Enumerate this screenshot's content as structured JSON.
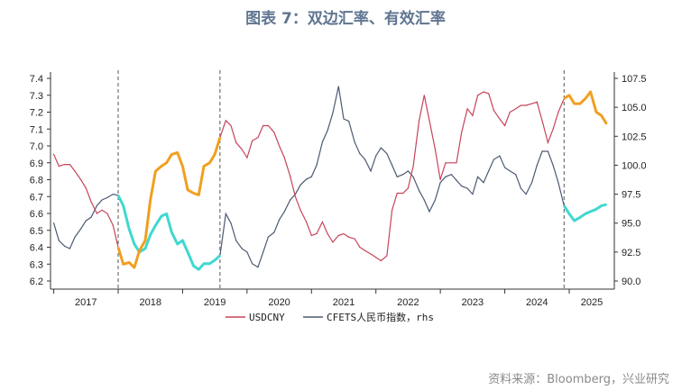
{
  "title": "图表 7：双边汇率、有效汇率",
  "source": "资料来源：Bloomberg，兴业研究",
  "chart_data": {
    "type": "line",
    "title": "图表 7：双边汇率、有效汇率",
    "x_range": [
      2016.95,
      2025.7
    ],
    "year_labels": [
      "2017",
      "2018",
      "2019",
      "2020",
      "2021",
      "2022",
      "2023",
      "2024",
      "2025"
    ],
    "dashed_markers": [
      2018.0,
      2019.58,
      2024.92
    ],
    "left_axis": {
      "min": 6.2,
      "max": 7.4,
      "ticks": [
        "6.2",
        "6.3",
        "6.4",
        "6.5",
        "6.6",
        "6.7",
        "6.8",
        "6.9",
        "7.0",
        "7.1",
        "7.2",
        "7.3",
        "7.4"
      ]
    },
    "right_axis": {
      "min": 90.0,
      "max": 107.5,
      "ticks": [
        "90.0",
        "92.5",
        "95.0",
        "97.5",
        "100.0",
        "102.5",
        "105.0",
        "107.5"
      ]
    },
    "colors": {
      "usdcny": "#c8445a",
      "cfets": "#4c5a72",
      "highlight_usdcny": "#f0a020",
      "highlight_cfets": "#40d8d0"
    },
    "legend": [
      {
        "label": "USDCNY",
        "color": "#c8445a"
      },
      {
        "label": "CFETS人民币指数，rhs",
        "color": "#4c5a72"
      }
    ],
    "series": [
      {
        "name": "USDCNY",
        "axis": "left",
        "x": [
          2017.0,
          2017.08,
          2017.17,
          2017.25,
          2017.33,
          2017.42,
          2017.5,
          2017.58,
          2017.67,
          2017.75,
          2017.83,
          2017.92,
          2018.0,
          2018.08,
          2018.17,
          2018.25,
          2018.33,
          2018.42,
          2018.5,
          2018.58,
          2018.67,
          2018.75,
          2018.83,
          2018.92,
          2019.0,
          2019.08,
          2019.17,
          2019.25,
          2019.33,
          2019.42,
          2019.5,
          2019.58,
          2019.67,
          2019.75,
          2019.83,
          2019.92,
          2020.0,
          2020.08,
          2020.17,
          2020.25,
          2020.33,
          2020.42,
          2020.5,
          2020.58,
          2020.67,
          2020.75,
          2020.83,
          2020.92,
          2021.0,
          2021.08,
          2021.17,
          2021.25,
          2021.33,
          2021.42,
          2021.5,
          2021.58,
          2021.67,
          2021.75,
          2021.83,
          2021.92,
          2022.0,
          2022.08,
          2022.17,
          2022.25,
          2022.33,
          2022.42,
          2022.5,
          2022.58,
          2022.67,
          2022.75,
          2022.83,
          2022.92,
          2023.0,
          2023.08,
          2023.17,
          2023.25,
          2023.33,
          2023.42,
          2023.5,
          2023.58,
          2023.67,
          2023.75,
          2023.83,
          2023.92,
          2024.0,
          2024.08,
          2024.17,
          2024.25,
          2024.33,
          2024.42,
          2024.5,
          2024.58,
          2024.67,
          2024.75,
          2024.83,
          2024.92,
          2025.0,
          2025.08,
          2025.17,
          2025.25,
          2025.33,
          2025.42,
          2025.5,
          2025.58
        ],
        "values": [
          6.95,
          6.88,
          6.89,
          6.89,
          6.85,
          6.8,
          6.75,
          6.67,
          6.6,
          6.62,
          6.6,
          6.53,
          6.4,
          6.3,
          6.31,
          6.28,
          6.38,
          6.44,
          6.68,
          6.85,
          6.88,
          6.9,
          6.95,
          6.96,
          6.88,
          6.74,
          6.72,
          6.71,
          6.88,
          6.9,
          6.95,
          7.05,
          7.15,
          7.12,
          7.02,
          6.98,
          6.93,
          7.03,
          7.05,
          7.12,
          7.12,
          7.08,
          7.0,
          6.93,
          6.82,
          6.7,
          6.62,
          6.55,
          6.47,
          6.48,
          6.55,
          6.48,
          6.43,
          6.47,
          6.48,
          6.46,
          6.45,
          6.4,
          6.38,
          6.36,
          6.34,
          6.32,
          6.35,
          6.62,
          6.72,
          6.72,
          6.75,
          6.88,
          7.15,
          7.3,
          7.15,
          6.98,
          6.8,
          6.9,
          6.9,
          6.9,
          7.08,
          7.22,
          7.18,
          7.3,
          7.32,
          7.31,
          7.21,
          7.16,
          7.12,
          7.2,
          7.22,
          7.24,
          7.24,
          7.25,
          7.26,
          7.15,
          7.02,
          7.1,
          7.2,
          7.28,
          7.3,
          7.25,
          7.25,
          7.28,
          7.32,
          7.2,
          7.18,
          7.13
        ]
      },
      {
        "name": "CFETS人民币指数，rhs",
        "axis": "right",
        "x": [
          2017.0,
          2017.08,
          2017.17,
          2017.25,
          2017.33,
          2017.42,
          2017.5,
          2017.58,
          2017.67,
          2017.75,
          2017.83,
          2017.92,
          2018.0,
          2018.08,
          2018.17,
          2018.25,
          2018.33,
          2018.42,
          2018.5,
          2018.58,
          2018.67,
          2018.75,
          2018.83,
          2018.92,
          2019.0,
          2019.08,
          2019.17,
          2019.25,
          2019.33,
          2019.42,
          2019.5,
          2019.58,
          2019.67,
          2019.75,
          2019.83,
          2019.92,
          2020.0,
          2020.08,
          2020.17,
          2020.25,
          2020.33,
          2020.42,
          2020.5,
          2020.58,
          2020.67,
          2020.75,
          2020.83,
          2020.92,
          2021.0,
          2021.08,
          2021.17,
          2021.25,
          2021.33,
          2021.42,
          2021.5,
          2021.58,
          2021.67,
          2021.75,
          2021.83,
          2021.92,
          2022.0,
          2022.08,
          2022.17,
          2022.25,
          2022.33,
          2022.42,
          2022.5,
          2022.58,
          2022.67,
          2022.75,
          2022.83,
          2022.92,
          2023.0,
          2023.08,
          2023.17,
          2023.25,
          2023.33,
          2023.42,
          2023.5,
          2023.58,
          2023.67,
          2023.75,
          2023.83,
          2023.92,
          2024.0,
          2024.08,
          2024.17,
          2024.25,
          2024.33,
          2024.42,
          2024.5,
          2024.58,
          2024.67,
          2024.75,
          2024.83,
          2024.92,
          2025.0,
          2025.08,
          2025.17,
          2025.25,
          2025.33,
          2025.42,
          2025.5,
          2025.58
        ],
        "values": [
          95.0,
          93.5,
          93.0,
          92.8,
          93.8,
          94.5,
          95.2,
          95.5,
          96.5,
          97.0,
          97.2,
          97.5,
          97.4,
          96.5,
          94.5,
          93.2,
          92.5,
          92.8,
          94.0,
          94.8,
          95.6,
          95.8,
          94.2,
          93.2,
          93.5,
          92.5,
          91.3,
          91.0,
          91.5,
          91.5,
          91.8,
          92.2,
          95.8,
          95.0,
          93.5,
          92.8,
          92.5,
          91.5,
          91.2,
          92.5,
          93.8,
          94.2,
          95.3,
          96.0,
          97.0,
          97.5,
          98.3,
          98.8,
          99.0,
          100.0,
          102.0,
          103.0,
          104.5,
          106.8,
          104.0,
          103.8,
          102.0,
          101.0,
          100.5,
          99.5,
          100.8,
          101.5,
          101.0,
          100.0,
          99.0,
          99.2,
          99.5,
          99.0,
          97.8,
          97.0,
          96.0,
          97.0,
          98.5,
          99.0,
          99.2,
          98.7,
          98.2,
          98.0,
          97.5,
          99.0,
          98.5,
          99.5,
          100.5,
          100.8,
          99.8,
          99.5,
          99.2,
          98.0,
          97.5,
          98.5,
          100.0,
          101.2,
          101.2,
          100.0,
          98.5,
          96.5,
          95.8,
          95.2,
          95.5,
          95.8,
          96.0,
          96.2,
          96.5,
          96.6
        ]
      }
    ],
    "highlight_ranges": [
      [
        2018.0,
        2019.58
      ],
      [
        2024.92,
        2025.6
      ]
    ]
  }
}
